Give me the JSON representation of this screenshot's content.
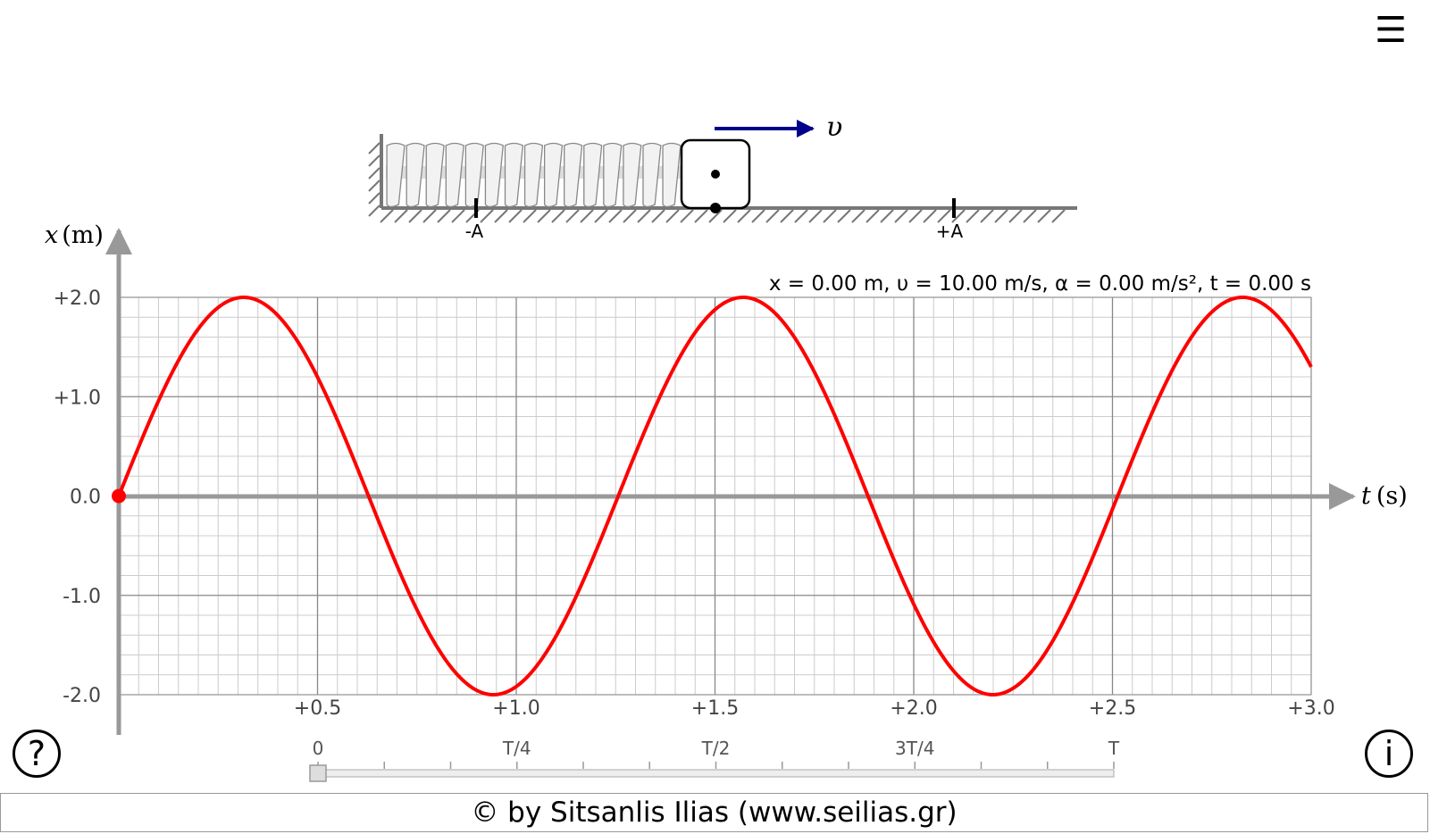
{
  "chart_data": {
    "type": "line",
    "xlabel_var": "t",
    "xlabel_unit": "(s)",
    "ylabel_var": "x",
    "ylabel_unit": "(m)",
    "xlim": [
      0,
      3.0
    ],
    "ylim": [
      -2.0,
      2.0
    ],
    "grid": true,
    "x_ticks": [
      "+0.5",
      "+1.0",
      "+1.5",
      "+2.0",
      "+2.5",
      "+3.0"
    ],
    "y_ticks": [
      "+2.0",
      "+1.0",
      "0.0",
      "-1.0",
      "-2.0"
    ],
    "series": [
      {
        "color": "#ff0000",
        "amplitude": 2.0,
        "period": 1.2566,
        "x": [
          0,
          0.1,
          0.2,
          0.314,
          0.4,
          0.5,
          0.628,
          0.75,
          0.85,
          0.942,
          1.05,
          1.15,
          1.257,
          1.35,
          1.45,
          1.571,
          1.7,
          1.8,
          1.885,
          2.0,
          2.1,
          2.199,
          2.3,
          2.4,
          2.513,
          2.6,
          2.7,
          2.827,
          2.9,
          3.0
        ],
        "y": [
          0.0,
          0.96,
          1.68,
          2.0,
          1.79,
          1.08,
          0.0,
          -1.27,
          -1.96,
          -2.0,
          -1.68,
          -0.96,
          0.0,
          0.96,
          1.68,
          2.0,
          1.49,
          0.79,
          0.0,
          -1.08,
          -1.79,
          -2.0,
          -1.68,
          -0.96,
          0.0,
          0.96,
          1.68,
          2.0,
          1.93,
          1.33
        ]
      }
    ],
    "current_point": {
      "t": 0.0,
      "x": 0.0,
      "color": "#ff0000"
    }
  },
  "readout": "x = 0.00 m, υ = 10.00 m/s, α = 0.00 m/s², t = 0.00 s",
  "spring_scene": {
    "velocity_label": "υ",
    "mark_minus": "-A",
    "mark_plus": "+A",
    "velocity_color": "#00008b"
  },
  "slider": {
    "labels": [
      "0",
      "T/4",
      "T/2",
      "3T/4",
      "T"
    ],
    "value_fraction": 0.0
  },
  "controls": {
    "menu_icon": "☰",
    "help_label": "?",
    "info_label": "i"
  },
  "footer": {
    "text": "© by Sitsanlis Ilias (www.seilias.gr)"
  }
}
